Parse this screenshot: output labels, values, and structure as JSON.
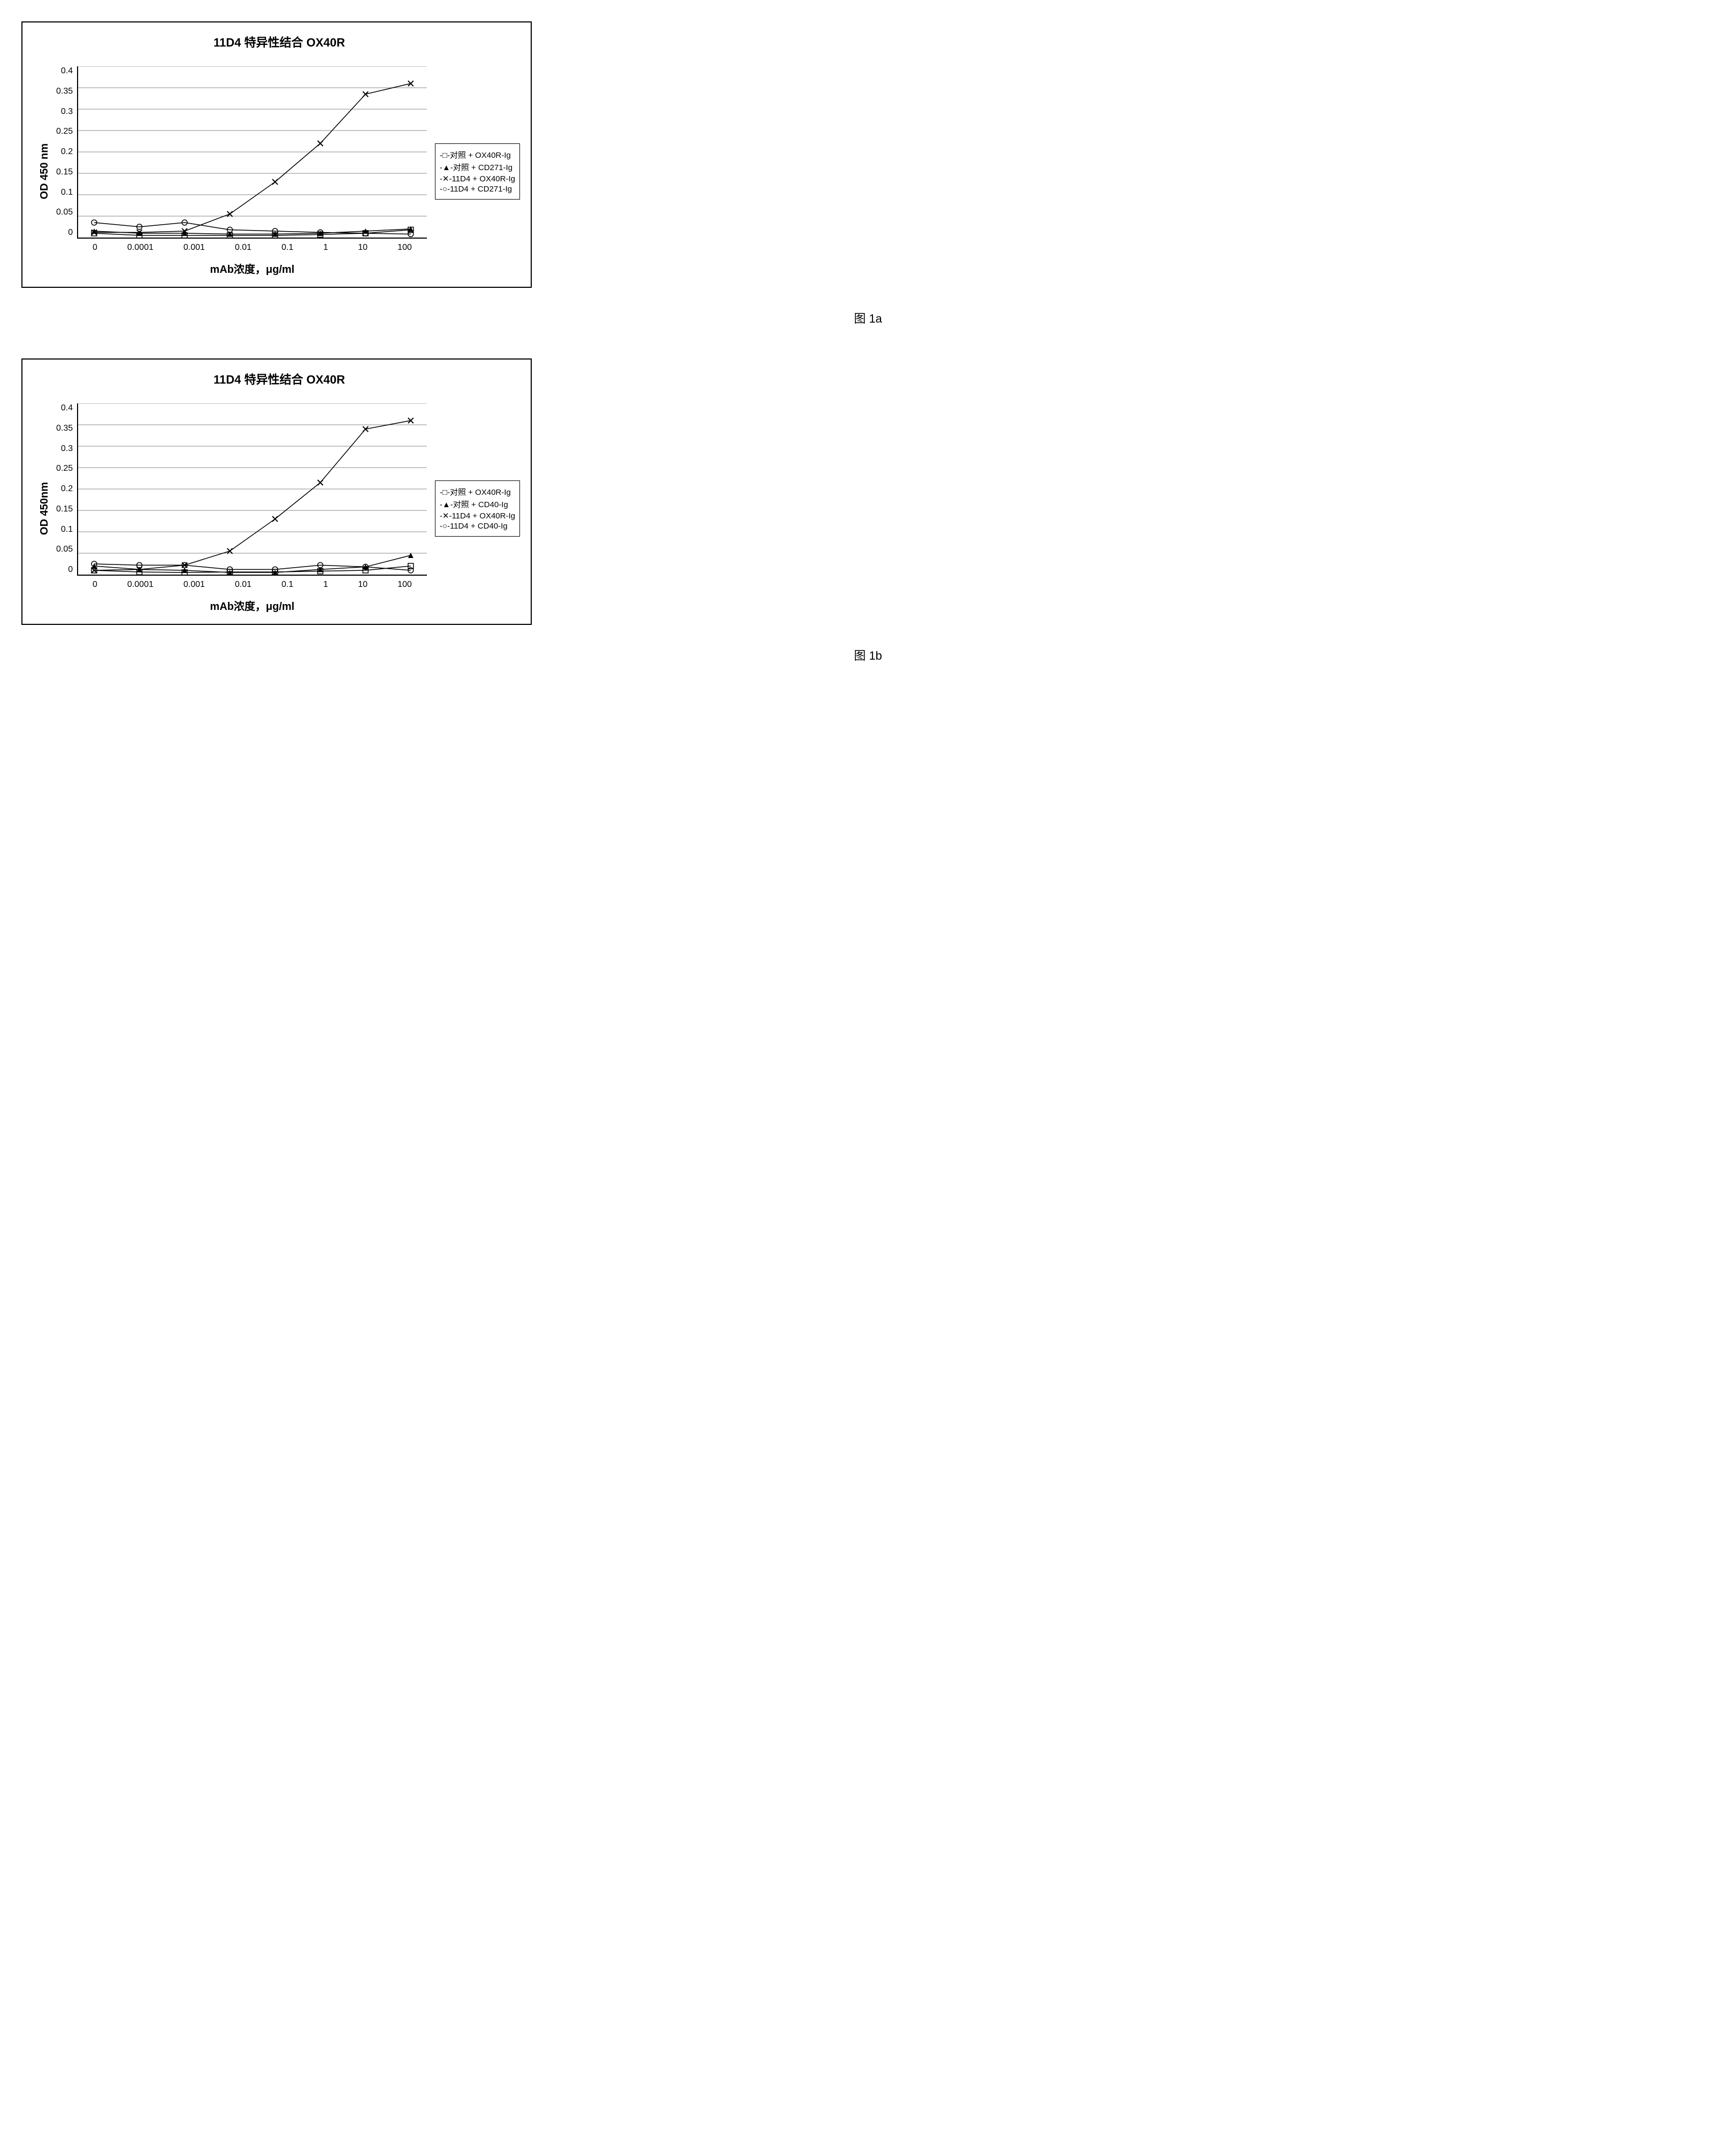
{
  "chart_a": {
    "type": "line",
    "title": "11D4 特异性结合 OX40R",
    "ylabel": "OD 450 nm",
    "xlabel": "mAb浓度，μg/ml",
    "ylim": [
      0,
      0.4
    ],
    "ytick_step": 0.05,
    "yticks": [
      "0",
      "0.05",
      "0.1",
      "0.15",
      "0.2",
      "0.25",
      "0.3",
      "0.35",
      "0.4"
    ],
    "xticks": [
      "0",
      "0.0001",
      "0.001",
      "0.01",
      "0.1",
      "1",
      "10",
      "100"
    ],
    "x_positions": [
      0,
      1,
      2,
      3,
      4,
      5,
      6,
      7
    ],
    "grid_color": "#888888",
    "background_color": "#ffffff",
    "series": [
      {
        "name": "对照 + OX40R-Ig",
        "marker": "square-open",
        "legend_prefix": "-□-",
        "color": "#000000",
        "values": [
          0.01,
          0.005,
          0.005,
          0.005,
          0.005,
          0.007,
          0.01,
          0.018
        ]
      },
      {
        "name": "对照 + CD271-Ig",
        "marker": "triangle-filled",
        "legend_prefix": "-▲-",
        "color": "#000000",
        "values": [
          0.015,
          0.01,
          0.01,
          0.008,
          0.008,
          0.01,
          0.015,
          0.02
        ]
      },
      {
        "name": "11D4 + OX40R-Ig",
        "marker": "x",
        "legend_prefix": "-✕-",
        "color": "#000000",
        "values": [
          0.012,
          0.012,
          0.015,
          0.055,
          0.13,
          0.22,
          0.335,
          0.36
        ]
      },
      {
        "name": "11D4 + CD271-Ig",
        "marker": "circle-open",
        "legend_prefix": "-○-",
        "color": "#000000",
        "values": [
          0.035,
          0.025,
          0.035,
          0.018,
          0.015,
          0.012,
          0.01,
          0.008
        ]
      }
    ],
    "figure_label": "图 1a"
  },
  "chart_b": {
    "type": "line",
    "title": "11D4 特异性结合 OX40R",
    "ylabel": "OD 450nm",
    "xlabel": "mAb浓度，μg/ml",
    "ylim": [
      0,
      0.4
    ],
    "ytick_step": 0.05,
    "yticks": [
      "0",
      "0.05",
      "0.1",
      "0.15",
      "0.2",
      "0.25",
      "0.3",
      "0.35",
      "0.4"
    ],
    "xticks": [
      "0",
      "0.0001",
      "0.001",
      "0.01",
      "0.1",
      "1",
      "10",
      "100"
    ],
    "x_positions": [
      0,
      1,
      2,
      3,
      4,
      5,
      6,
      7
    ],
    "grid_color": "#888888",
    "background_color": "#ffffff",
    "series": [
      {
        "name": "对照 + OX40R-Ig",
        "marker": "square-open",
        "legend_prefix": "-□-",
        "color": "#000000",
        "values": [
          0.01,
          0.006,
          0.005,
          0.006,
          0.006,
          0.008,
          0.01,
          0.02
        ]
      },
      {
        "name": "对照 + CD40-Ig",
        "marker": "triangle-filled",
        "legend_prefix": "-▲-",
        "color": "#000000",
        "values": [
          0.02,
          0.012,
          0.01,
          0.005,
          0.005,
          0.012,
          0.018,
          0.045
        ]
      },
      {
        "name": "11D4 + OX40R-Ig",
        "marker": "x",
        "legend_prefix": "-✕-",
        "color": "#000000",
        "values": [
          0.01,
          0.012,
          0.022,
          0.055,
          0.13,
          0.215,
          0.34,
          0.36
        ]
      },
      {
        "name": "11D4 + CD40-Ig",
        "marker": "circle-open",
        "legend_prefix": "-○-",
        "color": "#000000",
        "values": [
          0.025,
          0.022,
          0.022,
          0.012,
          0.012,
          0.022,
          0.018,
          0.01
        ]
      }
    ],
    "figure_label": "图 1b"
  }
}
